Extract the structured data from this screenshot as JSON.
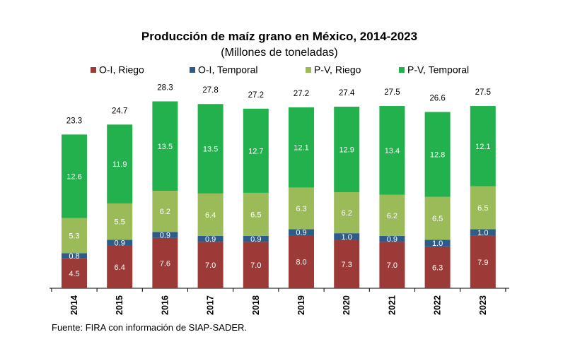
{
  "chart_data": {
    "type": "bar",
    "stacked": true,
    "title": "Producción de maíz grano en México, 2014-2023",
    "subtitle": "(Millones de toneladas)",
    "legend_position": "top",
    "categories": [
      "2014",
      "2015",
      "2016",
      "2017",
      "2018",
      "2019",
      "2020",
      "2021",
      "2022",
      "2023"
    ],
    "series": [
      {
        "name": "O-I, Riego",
        "color": "#9b3a36",
        "label_color": "#ffffff",
        "values": [
          4.5,
          6.4,
          7.6,
          7.0,
          7.0,
          8.0,
          7.3,
          7.0,
          6.3,
          7.9
        ]
      },
      {
        "name": "O-I, Temporal",
        "color": "#2e5c8a",
        "label_color": "#ffffff",
        "values": [
          0.8,
          0.9,
          0.9,
          0.9,
          0.9,
          0.9,
          1.0,
          0.9,
          1.0,
          1.0
        ]
      },
      {
        "name": "P-V, Riego",
        "color": "#9bbb59",
        "label_color": "#ffffff",
        "values": [
          5.3,
          5.5,
          6.2,
          6.4,
          6.5,
          6.3,
          6.2,
          6.2,
          6.5,
          6.5
        ]
      },
      {
        "name": "P-V, Temporal",
        "color": "#22b14c",
        "label_color": "#ffffff",
        "values": [
          12.6,
          11.9,
          13.5,
          13.5,
          12.7,
          12.1,
          12.9,
          13.4,
          12.8,
          12.1
        ]
      }
    ],
    "totals": [
      23.3,
      24.7,
      28.3,
      27.8,
      27.2,
      27.2,
      27.4,
      27.5,
      26.6,
      27.5
    ],
    "ylim": [
      0,
      30
    ],
    "grid": false,
    "xlabel": "",
    "ylabel": ""
  },
  "source_note": "Fuente: FIRA con información de SIAP-SADER."
}
